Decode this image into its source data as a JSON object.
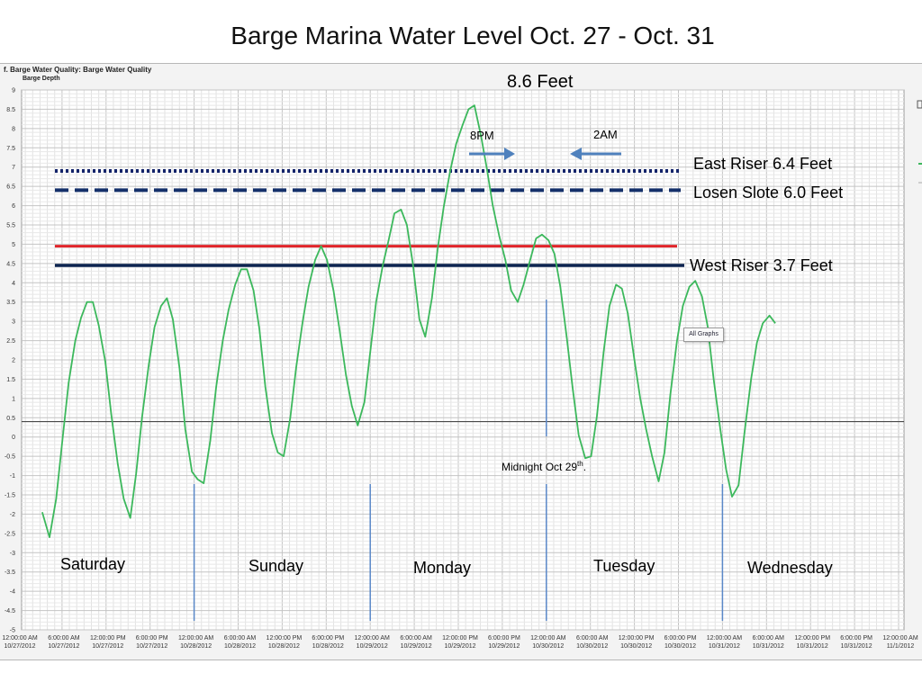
{
  "slide_title": "Barge Marina Water Level Oct. 27 - Oct. 31",
  "panel_title": "f. Barge Water Quality: Barge Water Quality",
  "series_label": "Barge Depth",
  "all_graphs_button": "All Graphs",
  "colors": {
    "series": "#3cb85c",
    "east_riser": "#14246a",
    "losen_slote": "#14306a",
    "red_line": "#e0242a",
    "west_riser": "#0d2450",
    "reference_line": "#333333",
    "markers": "#5a88c8",
    "arrows": "#4f81bd"
  },
  "annotations": {
    "peak": "8.6 Feet",
    "arrow_left": "8PM",
    "arrow_right": "2AM",
    "east_riser": "East Riser 6.4 Feet",
    "losen_slote": "Losen Slote 6.0 Feet",
    "west_riser": "West Riser 3.7 Feet",
    "midnight_prefix": "Midnight Oct 29",
    "midnight_sup": "th",
    "midnight_suffix": "."
  },
  "days": [
    "Saturday",
    "Sunday",
    "Monday",
    "Tuesday",
    "Wednesday"
  ],
  "chart_data": {
    "type": "line",
    "ylim": [
      -5,
      9
    ],
    "y_tick_step": 0.5,
    "xlim": [
      0,
      120
    ],
    "x_unit": "hours from 12:00:00 AM 10/27/2012",
    "x_ticks": [
      {
        "t": 0,
        "time": "12:00:00 AM",
        "date": "10/27/2012"
      },
      {
        "t": 6,
        "time": "6:00:00 AM",
        "date": "10/27/2012"
      },
      {
        "t": 12,
        "time": "12:00:00 PM",
        "date": "10/27/2012"
      },
      {
        "t": 18,
        "time": "6:00:00 PM",
        "date": "10/27/2012"
      },
      {
        "t": 24,
        "time": "12:00:00 AM",
        "date": "10/28/2012"
      },
      {
        "t": 30,
        "time": "6:00:00 AM",
        "date": "10/28/2012"
      },
      {
        "t": 36,
        "time": "12:00:00 PM",
        "date": "10/28/2012"
      },
      {
        "t": 42,
        "time": "6:00:00 PM",
        "date": "10/28/2012"
      },
      {
        "t": 48,
        "time": "12:00:00 AM",
        "date": "10/29/2012"
      },
      {
        "t": 54,
        "time": "6:00:00 AM",
        "date": "10/29/2012"
      },
      {
        "t": 60,
        "time": "12:00:00 PM",
        "date": "10/29/2012"
      },
      {
        "t": 66,
        "time": "6:00:00 PM",
        "date": "10/29/2012"
      },
      {
        "t": 72,
        "time": "12:00:00 AM",
        "date": "10/30/2012"
      },
      {
        "t": 78,
        "time": "6:00:00 AM",
        "date": "10/30/2012"
      },
      {
        "t": 84,
        "time": "12:00:00 PM",
        "date": "10/30/2012"
      },
      {
        "t": 90,
        "time": "6:00:00 PM",
        "date": "10/30/2012"
      },
      {
        "t": 96,
        "time": "12:00:00 AM",
        "date": "10/31/2012"
      },
      {
        "t": 102,
        "time": "6:00:00 AM",
        "date": "10/31/2012"
      },
      {
        "t": 108,
        "time": "12:00:00 PM",
        "date": "10/31/2012"
      },
      {
        "t": 114,
        "time": "6:00:00 PM",
        "date": "10/31/2012"
      },
      {
        "t": 120,
        "time": "12:00:00 AM",
        "date": "11/1/2012"
      }
    ],
    "series": [
      {
        "name": "Barge Depth",
        "points": [
          [
            3.3,
            -1.95
          ],
          [
            4.3,
            -2.6
          ],
          [
            5.2,
            -1.6
          ],
          [
            6.1,
            0.0
          ],
          [
            6.9,
            1.4
          ],
          [
            7.8,
            2.5
          ],
          [
            8.6,
            3.1
          ],
          [
            9.4,
            3.5
          ],
          [
            10.2,
            3.5
          ],
          [
            11.0,
            2.9
          ],
          [
            11.9,
            1.95
          ],
          [
            12.7,
            0.6
          ],
          [
            13.6,
            -0.7
          ],
          [
            14.4,
            -1.6
          ],
          [
            15.3,
            -2.1
          ],
          [
            16.1,
            -0.95
          ],
          [
            16.9,
            0.5
          ],
          [
            17.8,
            1.85
          ],
          [
            18.6,
            2.85
          ],
          [
            19.5,
            3.4
          ],
          [
            20.3,
            3.6
          ],
          [
            21.1,
            3.05
          ],
          [
            22.0,
            1.8
          ],
          [
            22.8,
            0.2
          ],
          [
            23.7,
            -0.9
          ],
          [
            24.5,
            -1.1
          ],
          [
            25.3,
            -1.2
          ],
          [
            26.2,
            -0.1
          ],
          [
            27.0,
            1.3
          ],
          [
            27.9,
            2.5
          ],
          [
            28.7,
            3.3
          ],
          [
            29.6,
            3.95
          ],
          [
            30.4,
            4.35
          ],
          [
            31.2,
            4.35
          ],
          [
            32.1,
            3.8
          ],
          [
            32.9,
            2.8
          ],
          [
            33.7,
            1.3
          ],
          [
            34.6,
            0.1
          ],
          [
            35.4,
            -0.4
          ],
          [
            36.2,
            -0.5
          ],
          [
            37.1,
            0.5
          ],
          [
            37.9,
            1.8
          ],
          [
            38.8,
            3.0
          ],
          [
            39.6,
            3.9
          ],
          [
            40.5,
            4.6
          ],
          [
            41.3,
            4.95
          ],
          [
            42.1,
            4.6
          ],
          [
            43.0,
            3.8
          ],
          [
            43.8,
            2.8
          ],
          [
            44.7,
            1.6
          ],
          [
            45.5,
            0.8
          ],
          [
            46.3,
            0.3
          ],
          [
            47.2,
            0.9
          ],
          [
            48.0,
            2.2
          ],
          [
            48.8,
            3.5
          ],
          [
            49.7,
            4.45
          ],
          [
            50.5,
            5.1
          ],
          [
            51.3,
            5.8
          ],
          [
            52.2,
            5.9
          ],
          [
            53.0,
            5.5
          ],
          [
            53.8,
            4.5
          ],
          [
            54.7,
            3.05
          ],
          [
            55.5,
            2.6
          ],
          [
            56.4,
            3.6
          ],
          [
            57.2,
            4.9
          ],
          [
            58.0,
            5.95
          ],
          [
            58.9,
            6.9
          ],
          [
            59.7,
            7.6
          ],
          [
            60.6,
            8.1
          ],
          [
            61.4,
            8.5
          ],
          [
            62.2,
            8.6
          ],
          [
            63.1,
            7.8
          ],
          [
            63.9,
            6.95
          ],
          [
            64.7,
            6.0
          ],
          [
            65.6,
            5.2
          ],
          [
            66.4,
            4.6
          ],
          [
            67.2,
            3.8
          ],
          [
            68.1,
            3.5
          ],
          [
            68.9,
            3.95
          ],
          [
            69.8,
            4.6
          ],
          [
            70.6,
            5.15
          ],
          [
            71.4,
            5.25
          ],
          [
            72.3,
            5.1
          ],
          [
            73.1,
            4.75
          ],
          [
            73.9,
            3.9
          ],
          [
            74.8,
            2.55
          ],
          [
            75.6,
            1.25
          ],
          [
            76.4,
            0.05
          ],
          [
            77.3,
            -0.55
          ],
          [
            78.1,
            -0.5
          ],
          [
            78.9,
            0.55
          ],
          [
            79.8,
            2.2
          ],
          [
            80.6,
            3.4
          ],
          [
            81.5,
            3.95
          ],
          [
            82.3,
            3.85
          ],
          [
            83.1,
            3.2
          ],
          [
            84.0,
            2.0
          ],
          [
            84.8,
            1.0
          ],
          [
            85.6,
            0.2
          ],
          [
            86.4,
            -0.5
          ],
          [
            87.3,
            -1.15
          ],
          [
            88.1,
            -0.4
          ],
          [
            88.9,
            1.1
          ],
          [
            89.8,
            2.5
          ],
          [
            90.6,
            3.4
          ],
          [
            91.5,
            3.9
          ],
          [
            92.3,
            4.05
          ],
          [
            93.2,
            3.65
          ],
          [
            94.0,
            2.85
          ],
          [
            94.8,
            1.5
          ],
          [
            95.7,
            0.2
          ],
          [
            96.5,
            -0.85
          ],
          [
            97.3,
            -1.55
          ],
          [
            98.2,
            -1.25
          ],
          [
            99.0,
            0.1
          ],
          [
            99.9,
            1.5
          ],
          [
            100.7,
            2.45
          ],
          [
            101.5,
            2.95
          ],
          [
            102.4,
            3.15
          ],
          [
            103.2,
            2.95
          ]
        ]
      }
    ],
    "reference_lines": [
      {
        "label": "East Riser 6.4 Feet",
        "y": 6.9,
        "style": "dotted"
      },
      {
        "label": "Losen Slote 6.0 Feet",
        "y": 6.4,
        "style": "dashed"
      },
      {
        "label": "",
        "y": 4.95,
        "style": "solid-red"
      },
      {
        "label": "West Riser 3.7 Feet",
        "y": 4.45,
        "style": "solid-navy"
      },
      {
        "label": "",
        "y": 0.4,
        "style": "thin-black"
      }
    ],
    "grid": true,
    "legend": "none"
  }
}
